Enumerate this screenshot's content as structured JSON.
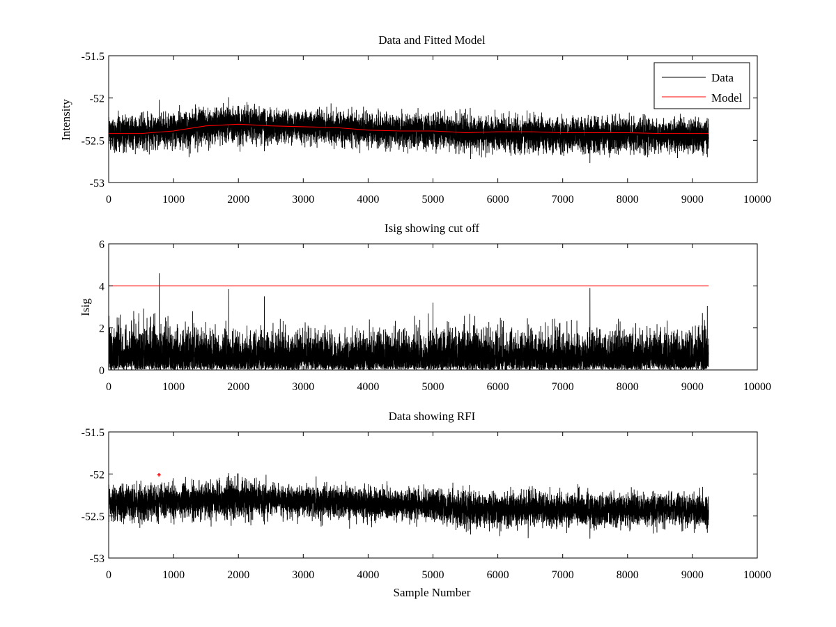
{
  "chart_data": [
    {
      "type": "line",
      "title": "Data and Fitted Model",
      "xlabel": "",
      "ylabel": "Intensity",
      "xlim": [
        0,
        10000
      ],
      "ylim": [
        -53,
        -51.5
      ],
      "xticks": [
        0,
        1000,
        2000,
        3000,
        4000,
        5000,
        6000,
        7000,
        8000,
        9000,
        10000
      ],
      "xtick_labels": [
        "0",
        "1000",
        "2000",
        "3000",
        "4000",
        "5000",
        "6000",
        "7000",
        "8000",
        "9000",
        "10000"
      ],
      "yticks": [
        -53,
        -52.5,
        -52,
        -51.5
      ],
      "ytick_labels": [
        "-53",
        "-52.5",
        "-52",
        "-51.5"
      ],
      "grid": false,
      "legend_position": "top-right",
      "series": [
        {
          "name": "Data",
          "color": "#000000",
          "style": "noisy-trace",
          "n_samples": 9250,
          "x": [
            0,
            500,
            1000,
            1500,
            2000,
            2500,
            3000,
            3500,
            4000,
            4500,
            5000,
            5500,
            6000,
            6500,
            7000,
            7500,
            8000,
            8500,
            9000,
            9250
          ],
          "center": [
            -52.42,
            -52.41,
            -52.38,
            -52.33,
            -52.31,
            -52.33,
            -52.34,
            -52.35,
            -52.38,
            -52.38,
            -52.39,
            -52.43,
            -52.44,
            -52.43,
            -52.43,
            -52.44,
            -52.44,
            -52.44,
            -52.44,
            -52.44
          ],
          "spread": [
            0.11,
            0.11,
            0.12,
            0.12,
            0.12,
            0.11,
            0.11,
            0.11,
            0.11,
            0.11,
            0.11,
            0.12,
            0.12,
            0.12,
            0.11,
            0.12,
            0.11,
            0.11,
            0.11,
            0.11
          ],
          "spikes": [
            [
              780,
              -52.02
            ],
            [
              1850,
              -51.99
            ],
            [
              2400,
              -52.63
            ],
            [
              5580,
              -52.72
            ],
            [
              7420,
              -52.77
            ],
            [
              9230,
              -52.7
            ]
          ]
        },
        {
          "name": "Model",
          "color": "#ff0000",
          "style": "line",
          "x": [
            0,
            500,
            1000,
            1500,
            2000,
            2500,
            3000,
            3500,
            4000,
            4500,
            5000,
            5500,
            6000,
            6500,
            7000,
            7500,
            8000,
            8500,
            9000,
            9250
          ],
          "y": [
            -52.42,
            -52.42,
            -52.39,
            -52.33,
            -52.31,
            -52.33,
            -52.34,
            -52.35,
            -52.38,
            -52.39,
            -52.39,
            -52.41,
            -52.4,
            -52.4,
            -52.41,
            -52.41,
            -52.41,
            -52.42,
            -52.42,
            -52.42
          ]
        }
      ]
    },
    {
      "type": "line",
      "title": "Isig showing cut off",
      "xlabel": "",
      "ylabel": "Isig",
      "xlim": [
        0,
        10000
      ],
      "ylim": [
        0,
        6
      ],
      "xticks": [
        0,
        1000,
        2000,
        3000,
        4000,
        5000,
        6000,
        7000,
        8000,
        9000,
        10000
      ],
      "xtick_labels": [
        "0",
        "1000",
        "2000",
        "3000",
        "4000",
        "5000",
        "6000",
        "7000",
        "8000",
        "9000",
        "10000"
      ],
      "yticks": [
        0,
        2,
        4,
        6
      ],
      "ytick_labels": [
        "0",
        "2",
        "4",
        "6"
      ],
      "grid": false,
      "series": [
        {
          "color": "#000000",
          "style": "abs-noise",
          "n_samples": 9250,
          "x": [
            0,
            500,
            1000,
            1500,
            2000,
            2500,
            3000,
            3500,
            4000,
            4500,
            5000,
            5500,
            6000,
            6500,
            7000,
            7500,
            8000,
            8500,
            9000,
            9250
          ],
          "spread": [
            0.95,
            0.95,
            0.9,
            0.85,
            0.8,
            0.85,
            0.8,
            0.8,
            0.8,
            0.8,
            0.82,
            0.85,
            0.85,
            0.82,
            0.8,
            0.8,
            0.8,
            0.8,
            0.82,
            0.85
          ],
          "spikes": [
            [
              780,
              4.6
            ],
            [
              1850,
              3.85
            ],
            [
              2400,
              3.5
            ],
            [
              5000,
              3.2
            ],
            [
              7420,
              3.9
            ],
            [
              9230,
              3.05
            ]
          ]
        },
        {
          "color": "#ff0000",
          "style": "line",
          "x": [
            0,
            9250
          ],
          "y": [
            4,
            4
          ]
        }
      ]
    },
    {
      "type": "line",
      "title": "Data showing RFI",
      "xlabel": "Sample Number",
      "ylabel": "",
      "xlim": [
        0,
        10000
      ],
      "ylim": [
        -53,
        -51.5
      ],
      "xticks": [
        0,
        1000,
        2000,
        3000,
        4000,
        5000,
        6000,
        7000,
        8000,
        9000,
        10000
      ],
      "xtick_labels": [
        "0",
        "1000",
        "2000",
        "3000",
        "4000",
        "5000",
        "6000",
        "7000",
        "8000",
        "9000",
        "10000"
      ],
      "yticks": [
        -53,
        -52.5,
        -52,
        -51.5
      ],
      "ytick_labels": [
        "-53",
        "-52.5",
        "-52",
        "-51.5"
      ],
      "grid": false,
      "series": [
        {
          "color": "#000000",
          "style": "noisy-trace",
          "n_samples": 9250,
          "x": [
            0,
            500,
            1000,
            1500,
            2000,
            2500,
            3000,
            3500,
            4000,
            4500,
            5000,
            5500,
            6000,
            6500,
            7000,
            7500,
            8000,
            8500,
            9000,
            9250
          ],
          "center": [
            -52.35,
            -52.35,
            -52.33,
            -52.31,
            -52.3,
            -52.31,
            -52.32,
            -52.33,
            -52.36,
            -52.37,
            -52.38,
            -52.42,
            -52.43,
            -52.42,
            -52.42,
            -52.43,
            -52.43,
            -52.43,
            -52.44,
            -52.44
          ],
          "spread": [
            0.11,
            0.11,
            0.12,
            0.12,
            0.12,
            0.11,
            0.11,
            0.11,
            0.11,
            0.11,
            0.11,
            0.12,
            0.12,
            0.12,
            0.11,
            0.12,
            0.11,
            0.11,
            0.11,
            0.11
          ],
          "spikes": [
            [
              1850,
              -51.99
            ],
            [
              2400,
              -52.6
            ],
            [
              5580,
              -52.72
            ],
            [
              7420,
              -52.77
            ],
            [
              9230,
              -52.7
            ]
          ]
        },
        {
          "color": "#ff0000",
          "style": "marker",
          "x": [
            775
          ],
          "y": [
            -52.01
          ]
        }
      ]
    }
  ]
}
